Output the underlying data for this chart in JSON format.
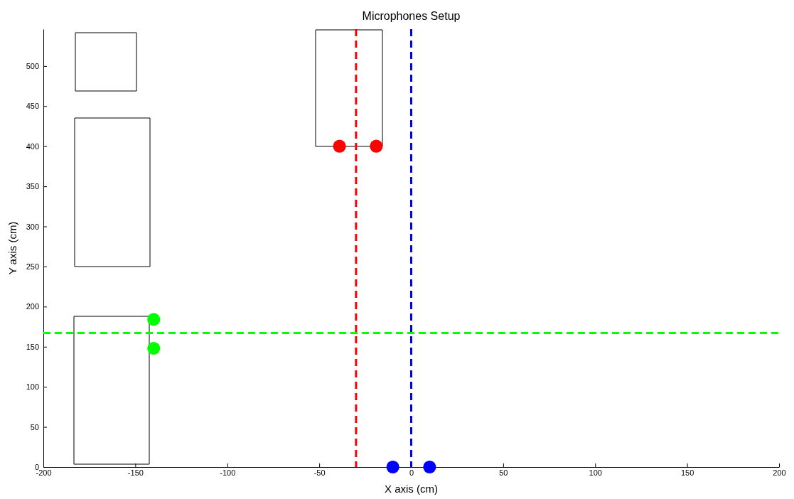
{
  "chart_data": {
    "type": "scatter",
    "title": "Microphones Setup",
    "xlabel": "X axis (cm)",
    "ylabel": "Y axis (cm)",
    "xlim": [
      -200,
      200
    ],
    "ylim": [
      0,
      546
    ],
    "xticks": [
      -200,
      -150,
      -100,
      -50,
      0,
      50,
      100,
      150,
      200
    ],
    "yticks": [
      0,
      50,
      100,
      150,
      200,
      250,
      300,
      350,
      400,
      450,
      500
    ],
    "grid": false,
    "marker": "circle",
    "series": [
      {
        "color": "#ff0000",
        "x": [
          -39,
          -19
        ],
        "values": [
          400,
          400
        ]
      },
      {
        "color": "#0000ff",
        "x": [
          -10,
          10
        ],
        "values": [
          0,
          0
        ]
      },
      {
        "color": "#00ff00",
        "x": [
          -140,
          -140
        ],
        "values": [
          184,
          148
        ]
      }
    ],
    "ref_lines": [
      {
        "axis": "x",
        "value": -30,
        "color": "#ff0000",
        "line_style": "dashed"
      },
      {
        "axis": "x",
        "value": 0,
        "color": "#0000ff",
        "line_style": "dashed"
      },
      {
        "axis": "y",
        "value": 167,
        "color": "#00ff00",
        "line_style": "dashed"
      }
    ]
  }
}
